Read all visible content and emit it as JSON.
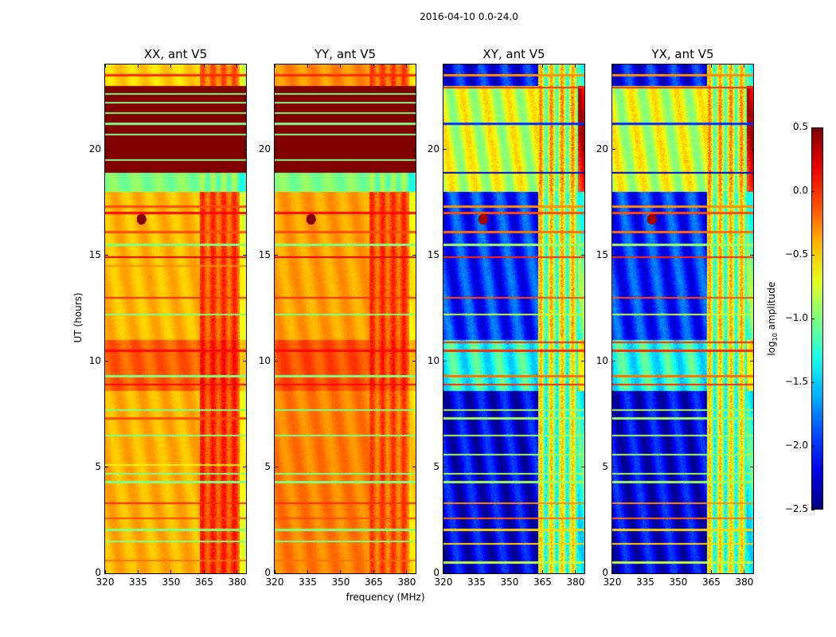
{
  "chart_data": {
    "type": "heatmap",
    "title": "2016-04-10 0.0-24.0",
    "xlabel": "frequency (MHz)",
    "ylabel": "UT (hours)",
    "xlim": [
      320,
      384
    ],
    "ylim": [
      0,
      24
    ],
    "xticks": [
      320,
      335,
      350,
      365,
      380
    ],
    "xtick_labels": [
      "320",
      "335",
      "350",
      "365",
      "380"
    ],
    "yticks": [
      0,
      5,
      10,
      15,
      20
    ],
    "ytick_labels": [
      "0",
      "5",
      "10",
      "15",
      "20"
    ],
    "band_mhz": [
      363,
      381
    ],
    "colorbar": {
      "colormap": "jet",
      "range": [
        -2.5,
        0.5
      ],
      "ticks": [
        0.5,
        0.0,
        -0.5,
        -1.0,
        -1.5,
        -2.0,
        -2.5
      ],
      "tick_labels": [
        "0.5",
        "0.0",
        "−0.5",
        "−1.0",
        "−1.5",
        "−2.0",
        "−2.5"
      ],
      "label_prefix": "log",
      "label_sub": "10",
      "label_suffix": " amplitude"
    },
    "panels": [
      {
        "title": "XX, ant V5",
        "segments": [
          {
            "ut": [
              0,
              8.6
            ],
            "base": -0.4,
            "band": -0.05
          },
          {
            "ut": [
              8.6,
              11
            ],
            "base": -0.15,
            "band": 0.0
          },
          {
            "ut": [
              11,
              18
            ],
            "base": -0.42,
            "band": -0.1
          },
          {
            "ut": [
              18,
              18.9
            ],
            "base": -1.0,
            "band": -1.0
          },
          {
            "ut": [
              18.9,
              23
            ],
            "base": 0.5,
            "band": 0.5
          },
          {
            "ut": [
              23,
              24
            ],
            "base": -0.5,
            "band": -0.2
          }
        ],
        "lines": [
          [
            0.6,
            -0.2
          ],
          [
            1.5,
            -1.0
          ],
          [
            2.05,
            -1.0
          ],
          [
            2.6,
            -0.1
          ],
          [
            3.3,
            0.0
          ],
          [
            4.3,
            -1.0
          ],
          [
            4.7,
            -1.0
          ],
          [
            5.1,
            -0.6
          ],
          [
            6.5,
            -1.0
          ],
          [
            7.3,
            -0.1
          ],
          [
            7.7,
            -1.0
          ],
          [
            8.9,
            0.1
          ],
          [
            9.3,
            -1.0
          ],
          [
            10.5,
            0.1
          ],
          [
            12.2,
            -1.0
          ],
          [
            13.0,
            0.0
          ],
          [
            14.5,
            -0.3
          ],
          [
            14.9,
            0.2
          ],
          [
            15.5,
            -1.0
          ],
          [
            16.1,
            -0.1
          ],
          [
            17.0,
            0.1
          ],
          [
            17.3,
            -0.1
          ],
          [
            19.5,
            -1.0
          ],
          [
            20.7,
            -1.0
          ],
          [
            21.2,
            -1.0
          ],
          [
            21.7,
            -1.0
          ],
          [
            22.2,
            -1.0
          ],
          [
            22.6,
            -1.0
          ],
          [
            23.5,
            0.0
          ]
        ],
        "source": {
          "mhz": 336.5,
          "ut": 16.7,
          "value": 0.5
        }
      },
      {
        "title": "YY, ant V5",
        "segments": [
          {
            "ut": [
              0,
              8.6
            ],
            "base": -0.25,
            "band": -0.15
          },
          {
            "ut": [
              8.6,
              11
            ],
            "base": -0.1,
            "band": -0.05
          },
          {
            "ut": [
              11,
              18
            ],
            "base": -0.35,
            "band": -0.1
          },
          {
            "ut": [
              18,
              18.9
            ],
            "base": -1.0,
            "band": -1.0
          },
          {
            "ut": [
              18.9,
              23
            ],
            "base": 0.5,
            "band": 0.5
          },
          {
            "ut": [
              23,
              24
            ],
            "base": -0.3,
            "band": -0.15
          }
        ],
        "lines": [
          [
            0.6,
            -0.2
          ],
          [
            1.5,
            -1.0
          ],
          [
            2.05,
            -1.0
          ],
          [
            2.6,
            -0.1
          ],
          [
            3.3,
            0.0
          ],
          [
            4.3,
            -1.0
          ],
          [
            4.7,
            -1.0
          ],
          [
            6.5,
            -1.0
          ],
          [
            7.7,
            -1.0
          ],
          [
            8.9,
            0.1
          ],
          [
            9.3,
            -1.0
          ],
          [
            10.5,
            0.1
          ],
          [
            12.2,
            -1.0
          ],
          [
            13.0,
            0.0
          ],
          [
            14.9,
            0.2
          ],
          [
            15.5,
            -1.0
          ],
          [
            16.1,
            -0.1
          ],
          [
            17.0,
            0.1
          ],
          [
            19.5,
            -1.0
          ],
          [
            20.7,
            -1.0
          ],
          [
            21.2,
            -1.0
          ],
          [
            21.7,
            -1.0
          ],
          [
            22.2,
            -1.0
          ],
          [
            22.6,
            -1.0
          ],
          [
            23.5,
            0.0
          ]
        ],
        "source": {
          "mhz": 336.5,
          "ut": 16.7,
          "value": 0.5
        }
      },
      {
        "title": "XY, ant V5",
        "segments": [
          {
            "ut": [
              0,
              8.6
            ],
            "base": -2.2,
            "band": -0.9
          },
          {
            "ut": [
              8.6,
              11
            ],
            "base": -1.3,
            "band": -0.9
          },
          {
            "ut": [
              11,
              18
            ],
            "base": -2.0,
            "band": -0.8
          },
          {
            "ut": [
              18,
              23
            ],
            "base": -0.75,
            "band": -0.7
          },
          {
            "ut": [
              23,
              24
            ],
            "base": -2.1,
            "band": -0.8
          }
        ],
        "lines": [
          [
            0.5,
            -0.8
          ],
          [
            1.4,
            -0.5
          ],
          [
            2.05,
            -0.5
          ],
          [
            2.6,
            -0.2
          ],
          [
            3.3,
            -0.3
          ],
          [
            4.3,
            -0.9
          ],
          [
            4.7,
            -0.9
          ],
          [
            5.6,
            -0.9
          ],
          [
            6.5,
            -0.9
          ],
          [
            7.3,
            -0.9
          ],
          [
            7.7,
            -0.9
          ],
          [
            8.9,
            0.0
          ],
          [
            9.3,
            -0.2
          ],
          [
            10.5,
            0.0
          ],
          [
            10.9,
            0.0
          ],
          [
            12.2,
            -0.8
          ],
          [
            13.0,
            -0.1
          ],
          [
            14.9,
            0.0
          ],
          [
            15.5,
            -0.9
          ],
          [
            16.1,
            -0.2
          ],
          [
            17.0,
            -0.1
          ],
          [
            17.3,
            -0.3
          ],
          [
            18.9,
            -2.3
          ],
          [
            21.2,
            -2.0
          ],
          [
            22.9,
            0.0
          ],
          [
            23.5,
            -0.3
          ]
        ],
        "source": {
          "mhz": 338,
          "ut": 16.7,
          "value": 0.4
        }
      },
      {
        "title": "YX, ant V5",
        "segments": [
          {
            "ut": [
              0,
              8.6
            ],
            "base": -2.2,
            "band": -0.9
          },
          {
            "ut": [
              8.6,
              11
            ],
            "base": -1.3,
            "band": -0.9
          },
          {
            "ut": [
              11,
              18
            ],
            "base": -2.0,
            "band": -0.8
          },
          {
            "ut": [
              18,
              23
            ],
            "base": -0.75,
            "band": -0.7
          },
          {
            "ut": [
              23,
              24
            ],
            "base": -2.1,
            "band": -0.8
          }
        ],
        "lines": [
          [
            0.5,
            -0.8
          ],
          [
            1.4,
            -0.5
          ],
          [
            2.05,
            -0.5
          ],
          [
            2.6,
            -0.2
          ],
          [
            3.3,
            -0.3
          ],
          [
            4.3,
            -0.9
          ],
          [
            4.7,
            -0.9
          ],
          [
            5.6,
            -0.9
          ],
          [
            6.5,
            -0.9
          ],
          [
            7.3,
            -0.9
          ],
          [
            7.7,
            -0.9
          ],
          [
            8.9,
            0.0
          ],
          [
            9.3,
            -0.2
          ],
          [
            10.5,
            0.0
          ],
          [
            10.9,
            0.0
          ],
          [
            12.2,
            -0.8
          ],
          [
            13.0,
            -0.1
          ],
          [
            14.9,
            0.0
          ],
          [
            15.5,
            -0.9
          ],
          [
            16.1,
            -0.2
          ],
          [
            17.0,
            -0.1
          ],
          [
            17.3,
            -0.3
          ],
          [
            18.9,
            -2.3
          ],
          [
            21.2,
            -2.0
          ],
          [
            22.9,
            0.0
          ],
          [
            23.5,
            -0.3
          ]
        ],
        "source": {
          "mhz": 338,
          "ut": 16.7,
          "value": 0.4
        }
      }
    ]
  }
}
